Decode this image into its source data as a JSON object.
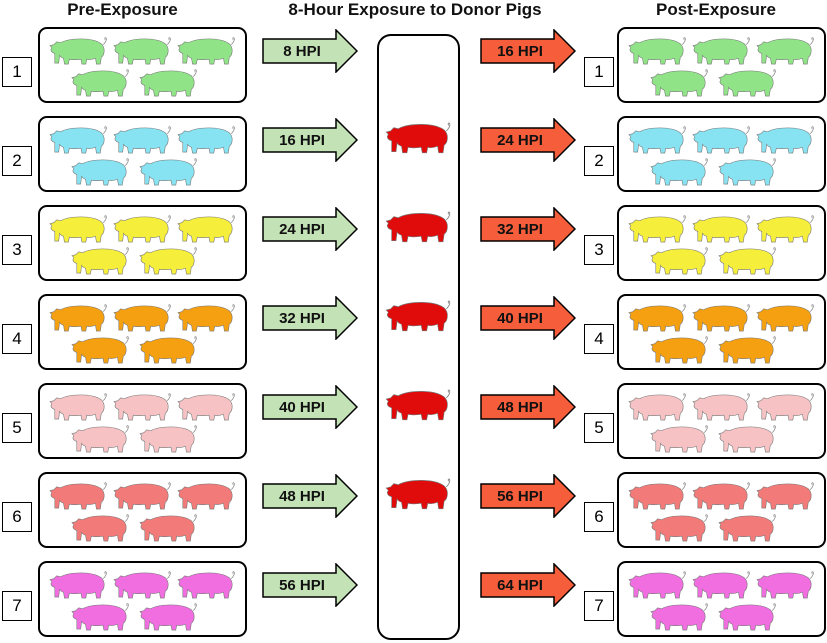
{
  "headers": {
    "pre": "Pre-Exposure",
    "middle": "8-Hour Exposure to Donor Pigs",
    "post": "Post-Exposure"
  },
  "groups": [
    {
      "number": "1",
      "color": "#90e487",
      "pre_arrow": "8 HPI",
      "post_arrow": "16 HPI"
    },
    {
      "number": "2",
      "color": "#87e3f2",
      "pre_arrow": "16 HPI",
      "post_arrow": "24 HPI"
    },
    {
      "number": "3",
      "color": "#f5ee3a",
      "pre_arrow": "24 HPI",
      "post_arrow": "32 HPI"
    },
    {
      "number": "4",
      "color": "#f5a010",
      "pre_arrow": "32 HPI",
      "post_arrow": "40 HPI"
    },
    {
      "number": "5",
      "color": "#f6c2c4",
      "pre_arrow": "40 HPI",
      "post_arrow": "48 HPI"
    },
    {
      "number": "6",
      "color": "#f27a78",
      "pre_arrow": "48 HPI",
      "post_arrow": "56 HPI"
    },
    {
      "number": "7",
      "color": "#f06ee0",
      "pre_arrow": "56 HPI",
      "post_arrow": "64 HPI"
    }
  ],
  "pigs_per_group": 5,
  "donor_pigs": {
    "count": 5,
    "color": "#e00c0c"
  },
  "colors": {
    "pre_arrow_fill": "#c3e2b6",
    "post_arrow_fill": "#f55d3b",
    "outline": "#000000"
  }
}
